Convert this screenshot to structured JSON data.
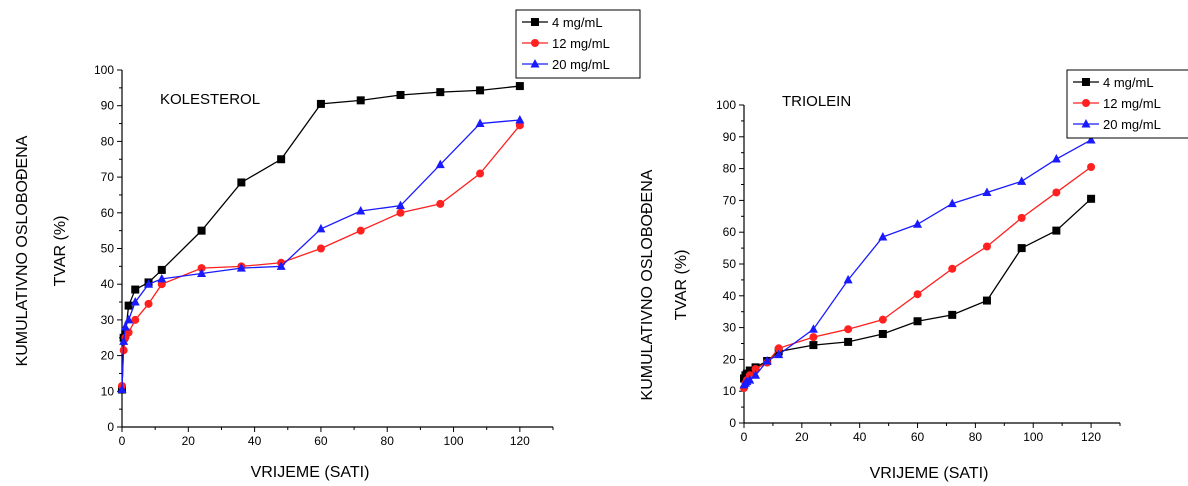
{
  "chart_data": [
    {
      "type": "line",
      "title": "KOLESTEROL",
      "xlabel": "VRIJEME (SATI)",
      "ylabel": [
        "KUMULATIVNO OSLOBOĐENA",
        "TVAR (%)"
      ],
      "xlim": [
        0,
        130
      ],
      "ylim": [
        0,
        100
      ],
      "xticks": [
        0,
        20,
        40,
        60,
        80,
        100,
        120
      ],
      "yticks": [
        0,
        10,
        20,
        30,
        40,
        50,
        60,
        70,
        80,
        90,
        100
      ],
      "grid": false,
      "legend_position": "top-right-outside",
      "series": [
        {
          "name": "4 mg/mL",
          "color": "#000000",
          "marker": "square",
          "x": [
            0,
            0.5,
            1,
            2,
            4,
            8,
            12,
            24,
            36,
            48,
            60,
            72,
            84,
            96,
            108,
            120
          ],
          "y": [
            10.5,
            25,
            26,
            34,
            38.5,
            40.5,
            44,
            55,
            68.5,
            75,
            90.5,
            91.5,
            93,
            93.8,
            94.3,
            95.5
          ]
        },
        {
          "name": "12 mg/mL",
          "color": "#ff2020",
          "marker": "circle",
          "x": [
            0,
            0.5,
            1,
            2,
            4,
            8,
            12,
            24,
            36,
            48,
            60,
            72,
            84,
            96,
            108,
            120
          ],
          "y": [
            11.5,
            21.5,
            25,
            26.5,
            30,
            34.5,
            40,
            44.5,
            45,
            46,
            50,
            55,
            60,
            62.5,
            71,
            84.5
          ]
        },
        {
          "name": "20 mg/mL",
          "color": "#1a1aff",
          "marker": "triangle",
          "x": [
            0,
            0.5,
            1,
            2,
            4,
            8,
            12,
            24,
            36,
            48,
            60,
            72,
            84,
            96,
            108,
            120
          ],
          "y": [
            10.5,
            24,
            28,
            30,
            35,
            40,
            41.5,
            43,
            44.5,
            45,
            55.5,
            60.5,
            62,
            73.5,
            85,
            86
          ]
        }
      ]
    },
    {
      "type": "line",
      "title": "TRIOLEIN",
      "xlabel": "VRIJEME (SATI)",
      "ylabel": [
        "KUMULATIVNO OSLOBOĐENA",
        "TVAR (%)"
      ],
      "xlim": [
        0,
        130
      ],
      "ylim": [
        0,
        100
      ],
      "xticks": [
        0,
        20,
        40,
        60,
        80,
        100,
        120
      ],
      "yticks": [
        0,
        10,
        20,
        30,
        40,
        50,
        60,
        70,
        80,
        90,
        100
      ],
      "grid": false,
      "legend_position": "top-right",
      "series": [
        {
          "name": "4 mg/mL",
          "color": "#000000",
          "marker": "square",
          "x": [
            0,
            0.5,
            1,
            2,
            4,
            8,
            12,
            24,
            36,
            48,
            60,
            72,
            84,
            96,
            108,
            120
          ],
          "y": [
            14,
            15,
            15.5,
            16.5,
            17.5,
            19.5,
            22.5,
            24.5,
            25.5,
            28,
            32,
            34,
            38.5,
            55,
            60.5,
            70.5
          ]
        },
        {
          "name": "12 mg/mL",
          "color": "#ff2020",
          "marker": "circle",
          "x": [
            0,
            0.5,
            1,
            2,
            4,
            8,
            12,
            24,
            36,
            48,
            60,
            72,
            84,
            96,
            108,
            120
          ],
          "y": [
            11,
            12.5,
            13.5,
            15,
            17,
            19,
            23.5,
            27,
            29.5,
            32.5,
            40.5,
            48.5,
            55.5,
            64.5,
            72.5,
            80.5
          ]
        },
        {
          "name": "20 mg/mL",
          "color": "#1a1aff",
          "marker": "triangle",
          "x": [
            0,
            0.5,
            1,
            2,
            4,
            8,
            12,
            24,
            36,
            48,
            60,
            72,
            84,
            96,
            108,
            120
          ],
          "y": [
            12,
            12.5,
            13,
            13.5,
            15,
            19.5,
            21.5,
            29.5,
            45,
            58.5,
            62.5,
            69,
            72.5,
            76,
            83,
            89
          ]
        }
      ]
    }
  ]
}
